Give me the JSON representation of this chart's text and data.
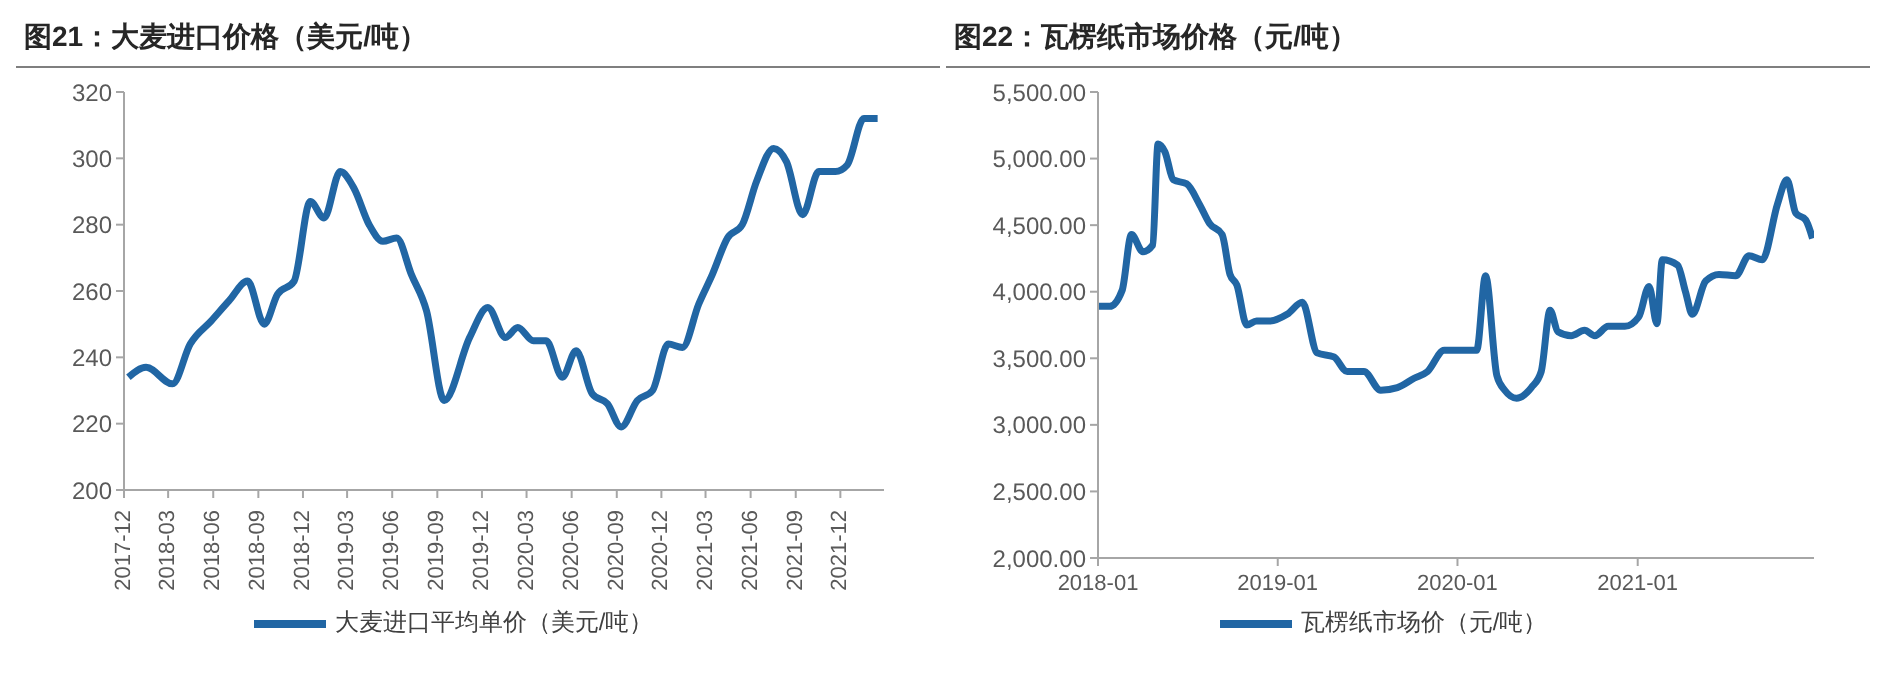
{
  "chart_data": [
    {
      "type": "line",
      "title": "图21：大麦进口价格（美元/吨）",
      "legend": "bottom",
      "grid": false,
      "x": [
        "2017-12-10",
        "2018-01-15",
        "2018-03-10",
        "2018-04-15",
        "2018-05-28",
        "2018-07-03",
        "2018-08-10",
        "2018-09-13",
        "2018-10-10",
        "2018-11-13",
        "2018-12-16",
        "2019-01-13",
        "2019-02-15",
        "2019-03-15",
        "2019-04-15",
        "2019-05-13",
        "2019-06-10",
        "2019-07-10",
        "2019-08-10",
        "2019-09-15",
        "2019-11-06",
        "2019-12-13",
        "2020-01-18",
        "2020-02-12",
        "2020-03-15",
        "2020-04-10",
        "2020-05-13",
        "2020-06-10",
        "2020-07-13",
        "2020-08-13",
        "2020-09-10",
        "2020-10-13",
        "2020-11-13",
        "2020-12-15",
        "2021-01-13",
        "2021-02-15",
        "2021-03-15",
        "2021-04-15",
        "2021-05-15",
        "2021-06-13",
        "2021-07-18",
        "2021-08-13",
        "2021-09-15",
        "2021-10-18",
        "2021-11-21",
        "2021-12-15",
        "2022-01-18",
        "2022-02-15"
      ],
      "series": [
        {
          "name": "大麦进口平均单价（美元/吨）",
          "color": "#2166a4",
          "values": [
            234,
            237,
            232,
            244,
            251,
            257,
            263,
            250,
            259,
            263,
            287,
            282,
            296,
            291,
            280,
            275,
            276,
            265,
            254,
            227,
            246,
            255,
            246,
            249,
            245,
            245,
            234,
            242,
            229,
            226,
            219,
            227,
            230,
            244,
            243,
            256,
            265,
            276,
            280,
            293,
            303,
            299,
            283,
            296,
            296,
            298,
            312,
            312
          ]
        }
      ],
      "xlim": [
        "2017-12-01",
        "2022-02-28"
      ],
      "xticks": [
        "2017-12",
        "2018-03",
        "2018-06",
        "2018-09",
        "2018-12",
        "2019-03",
        "2019-06",
        "2019-09",
        "2019-12",
        "2020-03",
        "2020-06",
        "2020-09",
        "2020-12",
        "2021-03",
        "2021-06",
        "2021-09",
        "2021-12"
      ],
      "ylim": [
        200,
        320
      ],
      "yticks": [
        200,
        220,
        240,
        260,
        280,
        300,
        320
      ]
    },
    {
      "type": "line",
      "title": "图22：瓦楞纸市场价格（元/吨）",
      "legend": "bottom",
      "grid": false,
      "x": [
        "2018-01-01",
        "2018-01-25",
        "2018-02-19",
        "2018-03-10",
        "2018-04-02",
        "2018-04-22",
        "2018-05-03",
        "2018-05-17",
        "2018-06-03",
        "2018-06-30",
        "2018-07-27",
        "2018-08-16",
        "2018-09-10",
        "2018-09-26",
        "2018-10-10",
        "2018-10-30",
        "2018-11-19",
        "2018-12-17",
        "2019-01-20",
        "2019-02-20",
        "2019-03-22",
        "2019-04-25",
        "2019-05-22",
        "2019-06-25",
        "2019-07-29",
        "2019-09-01",
        "2019-10-05",
        "2019-11-01",
        "2019-12-05",
        "2020-01-09",
        "2020-02-09",
        "2020-02-27",
        "2020-03-21",
        "2020-04-06",
        "2020-04-30",
        "2020-05-30",
        "2020-06-19",
        "2020-07-07",
        "2020-07-23",
        "2020-08-19",
        "2020-09-15",
        "2020-10-06",
        "2020-11-02",
        "2020-12-06",
        "2021-01-03",
        "2021-01-24",
        "2021-02-09",
        "2021-02-20",
        "2021-03-23",
        "2021-04-08",
        "2021-04-22",
        "2021-05-19",
        "2021-06-15",
        "2021-07-19",
        "2021-08-15",
        "2021-09-11",
        "2021-10-12",
        "2021-10-31",
        "2021-11-18",
        "2021-12-08",
        "2021-12-22"
      ],
      "series": [
        {
          "name": "瓦楞纸市场价（元/吨）",
          "color": "#2166a4",
          "values": [
            3890,
            3890,
            4010,
            4430,
            4300,
            4350,
            5110,
            5050,
            4840,
            4810,
            4650,
            4510,
            4430,
            4130,
            4050,
            3750,
            3780,
            3780,
            3830,
            3920,
            3540,
            3510,
            3400,
            3400,
            3260,
            3280,
            3350,
            3400,
            3560,
            3560,
            3560,
            4120,
            3370,
            3260,
            3200,
            3280,
            3400,
            3860,
            3700,
            3670,
            3710,
            3670,
            3740,
            3740,
            3810,
            4040,
            3760,
            4240,
            4200,
            4000,
            3830,
            4080,
            4130,
            4120,
            4270,
            4240,
            4660,
            4840,
            4590,
            4540,
            4400
          ]
        }
      ],
      "xlim": [
        "2018-01-01",
        "2021-12-25"
      ],
      "xticks": [
        "2018-01",
        "2019-01",
        "2020-01",
        "2021-01"
      ],
      "ylim": [
        2000,
        5500
      ],
      "yticks": [
        {
          "value": 2000,
          "label": "2,000.00"
        },
        {
          "value": 2500,
          "label": "2,500.00"
        },
        {
          "value": 3000,
          "label": "3,000.00"
        },
        {
          "value": 3500,
          "label": "3,500.00"
        },
        {
          "value": 4000,
          "label": "4,000.00"
        },
        {
          "value": 4500,
          "label": "4,500.00"
        },
        {
          "value": 5000,
          "label": "5,000.00"
        },
        {
          "value": 5500,
          "label": "5,500.00"
        }
      ]
    }
  ]
}
